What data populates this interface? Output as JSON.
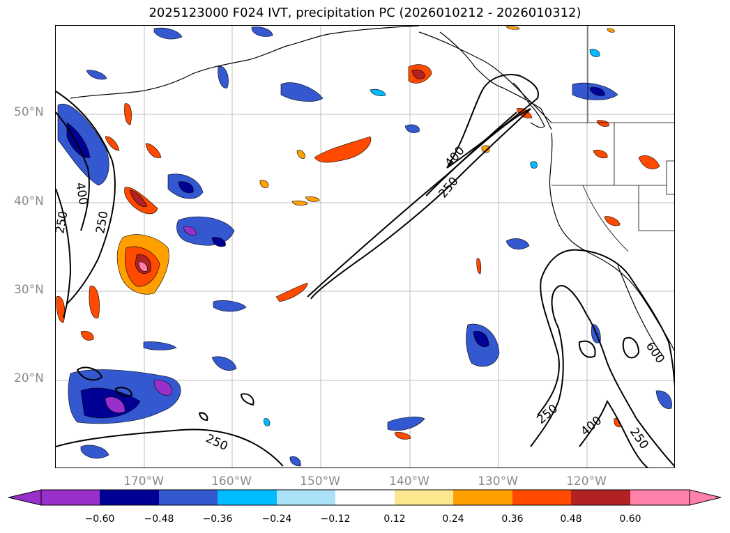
{
  "title": "2025123000 F024 IVT, precipitation PC (2026010212 - 2026010312)",
  "lat_labels": [
    "50°N",
    "40°N",
    "30°N",
    "20°N"
  ],
  "lon_labels": [
    "170°W",
    "160°W",
    "150°W",
    "140°W",
    "130°W",
    "120°W"
  ],
  "contour_levels": [
    "250",
    "400",
    "600"
  ],
  "colorbar": {
    "ticks": [
      "−0.60",
      "−0.48",
      "−0.36",
      "−0.24",
      "−0.12",
      "0.12",
      "0.24",
      "0.36",
      "0.48",
      "0.60"
    ],
    "colors": [
      "#9a30cc",
      "#000094",
      "#3358d0",
      "#00bbff",
      "#abe2f7",
      "#ffffff",
      "#fbe88e",
      "#ff9f00",
      "#ff4a00",
      "#b22222",
      "#ff80a8"
    ]
  }
}
